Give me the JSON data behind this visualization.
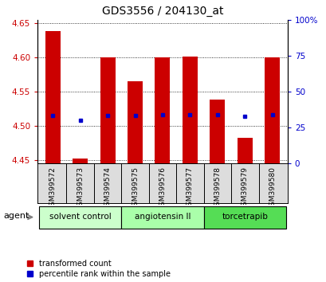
{
  "title": "GDS3556 / 204130_at",
  "samples": [
    "GSM399572",
    "GSM399573",
    "GSM399574",
    "GSM399575",
    "GSM399576",
    "GSM399577",
    "GSM399578",
    "GSM399579",
    "GSM399580"
  ],
  "bar_tops": [
    4.638,
    4.452,
    4.6,
    4.565,
    4.6,
    4.601,
    4.538,
    4.483,
    4.6
  ],
  "bar_bottoms": [
    4.445,
    4.445,
    4.445,
    4.445,
    4.445,
    4.445,
    4.445,
    4.445,
    4.445
  ],
  "percentile_values": [
    4.515,
    4.508,
    4.515,
    4.515,
    4.516,
    4.516,
    4.516,
    4.514,
    4.516
  ],
  "ylim": [
    4.445,
    4.655
  ],
  "yticks": [
    4.45,
    4.5,
    4.55,
    4.6,
    4.65
  ],
  "right_yticks_pct": [
    0,
    25,
    50,
    75,
    100
  ],
  "right_ytick_labels": [
    "0",
    "25",
    "50",
    "75",
    "100%"
  ],
  "bar_color": "#cc0000",
  "percentile_color": "#0000cc",
  "agent_groups": [
    {
      "label": "solvent control",
      "start": 0,
      "end": 3,
      "color": "#ccffcc"
    },
    {
      "label": "angiotensin II",
      "start": 3,
      "end": 6,
      "color": "#aaffaa"
    },
    {
      "label": "torcetrapib",
      "start": 6,
      "end": 9,
      "color": "#55dd55"
    }
  ],
  "legend_items": [
    {
      "label": "transformed count",
      "color": "#cc0000"
    },
    {
      "label": "percentile rank within the sample",
      "color": "#0000cc"
    }
  ],
  "agent_label": "agent",
  "background_color": "#ffffff",
  "tick_label_color_left": "#cc0000",
  "tick_label_color_right": "#0000cc",
  "bar_width": 0.55,
  "xlim": [
    -0.55,
    8.55
  ]
}
